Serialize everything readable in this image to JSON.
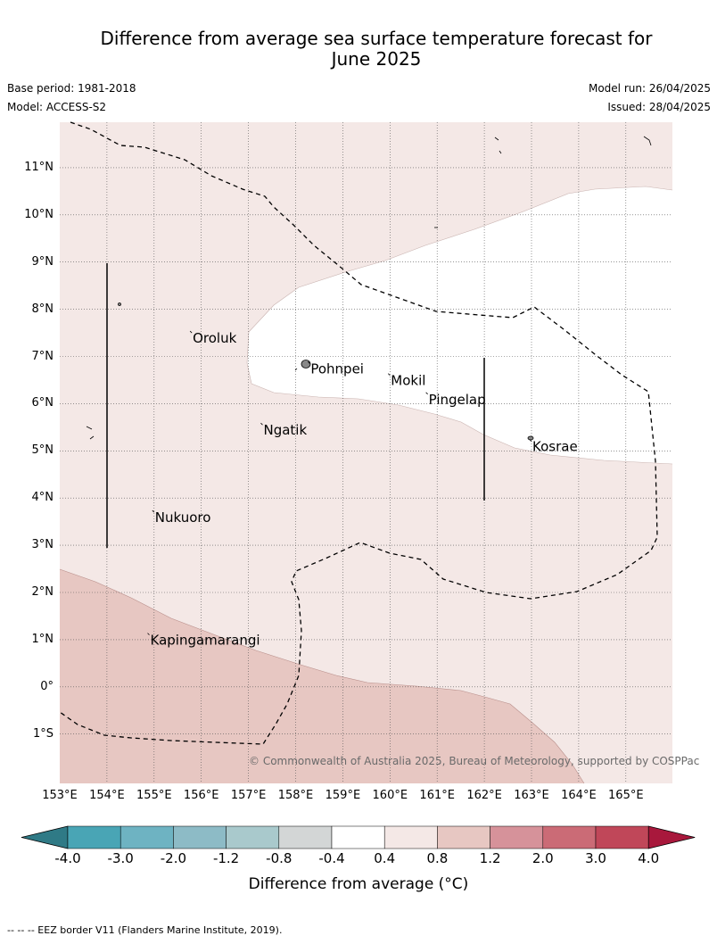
{
  "title": "Difference from average sea surface temperature forecast for June 2025",
  "title_lines": [
    "Difference from average sea surface temperature forecast for",
    "June 2025"
  ],
  "base_period": "Base period: 1981-2018",
  "model": "Model: ACCESS-S2",
  "model_run": "Model run: 26/04/2025",
  "issued": "Issued: 28/04/2025",
  "copyright": "© Commonwealth of Australia 2025, Bureau of Meteorology, supported by COSPPac",
  "lat_labels": [
    "11°N",
    "10°N",
    "9°N",
    "8°N",
    "7°N",
    "6°N",
    "5°N",
    "4°N",
    "3°N",
    "2°N",
    "1°N",
    "0°",
    "1°S"
  ],
  "lon_labels": [
    "153°E",
    "154°E",
    "155°E",
    "156°E",
    "157°E",
    "158°E",
    "159°E",
    "160°E",
    "161°E",
    "162°E",
    "163°E",
    "164°E",
    "165°E"
  ],
  "places": [
    {
      "name": "Oroluk",
      "lon": 155.8,
      "lat": 7.5
    },
    {
      "name": "Pohnpei",
      "lon": 158.3,
      "lat": 6.85
    },
    {
      "name": "Mokil",
      "lon": 160.0,
      "lat": 6.6
    },
    {
      "name": "Pingelap",
      "lon": 160.8,
      "lat": 6.2
    },
    {
      "name": "Ngatik",
      "lon": 157.3,
      "lat": 5.55
    },
    {
      "name": "Kosrae",
      "lon": 163.0,
      "lat": 5.2
    },
    {
      "name": "Nukuoro",
      "lon": 155.0,
      "lat": 3.7
    },
    {
      "name": "Kapingamarangi",
      "lon": 154.9,
      "lat": 1.1
    }
  ],
  "colorbar": {
    "ticks": [
      "-4.0",
      "-3.0",
      "-2.0",
      "-1.2",
      "-0.8",
      "-0.4",
      "0.4",
      "0.8",
      "1.2",
      "2.0",
      "3.0",
      "4.0"
    ],
    "label": "Difference from average (°C)",
    "colors": {
      "below_min": "#2f7a86",
      "bins": [
        "#49a5b5",
        "#6eb3c2",
        "#8dbbc6",
        "#a9c9cc",
        "#d3d6d6",
        "#ffffff",
        "#f4e8e6",
        "#e7c7c2",
        "#d6929a",
        "#cb6b76",
        "#c04759"
      ],
      "above_max": "#a8183c"
    }
  },
  "map_colors": {
    "0.4_to_0.8": "#f4e8e6",
    "0.8_to_1.2": "#e7c7c2",
    "-0.4_to_0.4": "#ffffff"
  },
  "footnote": "--  --  -- EEZ border V11 (Flanders Marine Institute, 2019)."
}
